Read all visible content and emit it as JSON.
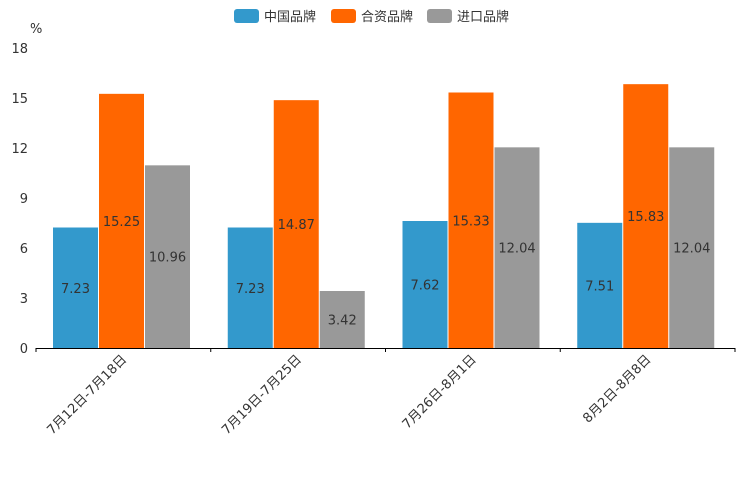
{
  "chart_data": {
    "type": "bar",
    "title": "",
    "xlabel": "",
    "ylabel": "%",
    "ylim": [
      0,
      18
    ],
    "yticks": [
      0,
      3,
      6,
      9,
      12,
      15,
      18
    ],
    "grid": false,
    "legend_position": "top-center",
    "categories": [
      "7月12日-7月18日",
      "7月19日-7月25日",
      "7月26日-8月1日",
      "8月2日-8月8日"
    ],
    "series": [
      {
        "name": "中国品牌",
        "color": "#3399cc",
        "values": [
          7.23,
          7.23,
          7.62,
          7.51
        ]
      },
      {
        "name": "合资品牌",
        "color": "#ff6600",
        "values": [
          15.25,
          14.87,
          15.33,
          15.83
        ]
      },
      {
        "name": "进口品牌",
        "color": "#999999",
        "values": [
          10.96,
          3.42,
          12.04,
          12.04
        ]
      }
    ]
  }
}
